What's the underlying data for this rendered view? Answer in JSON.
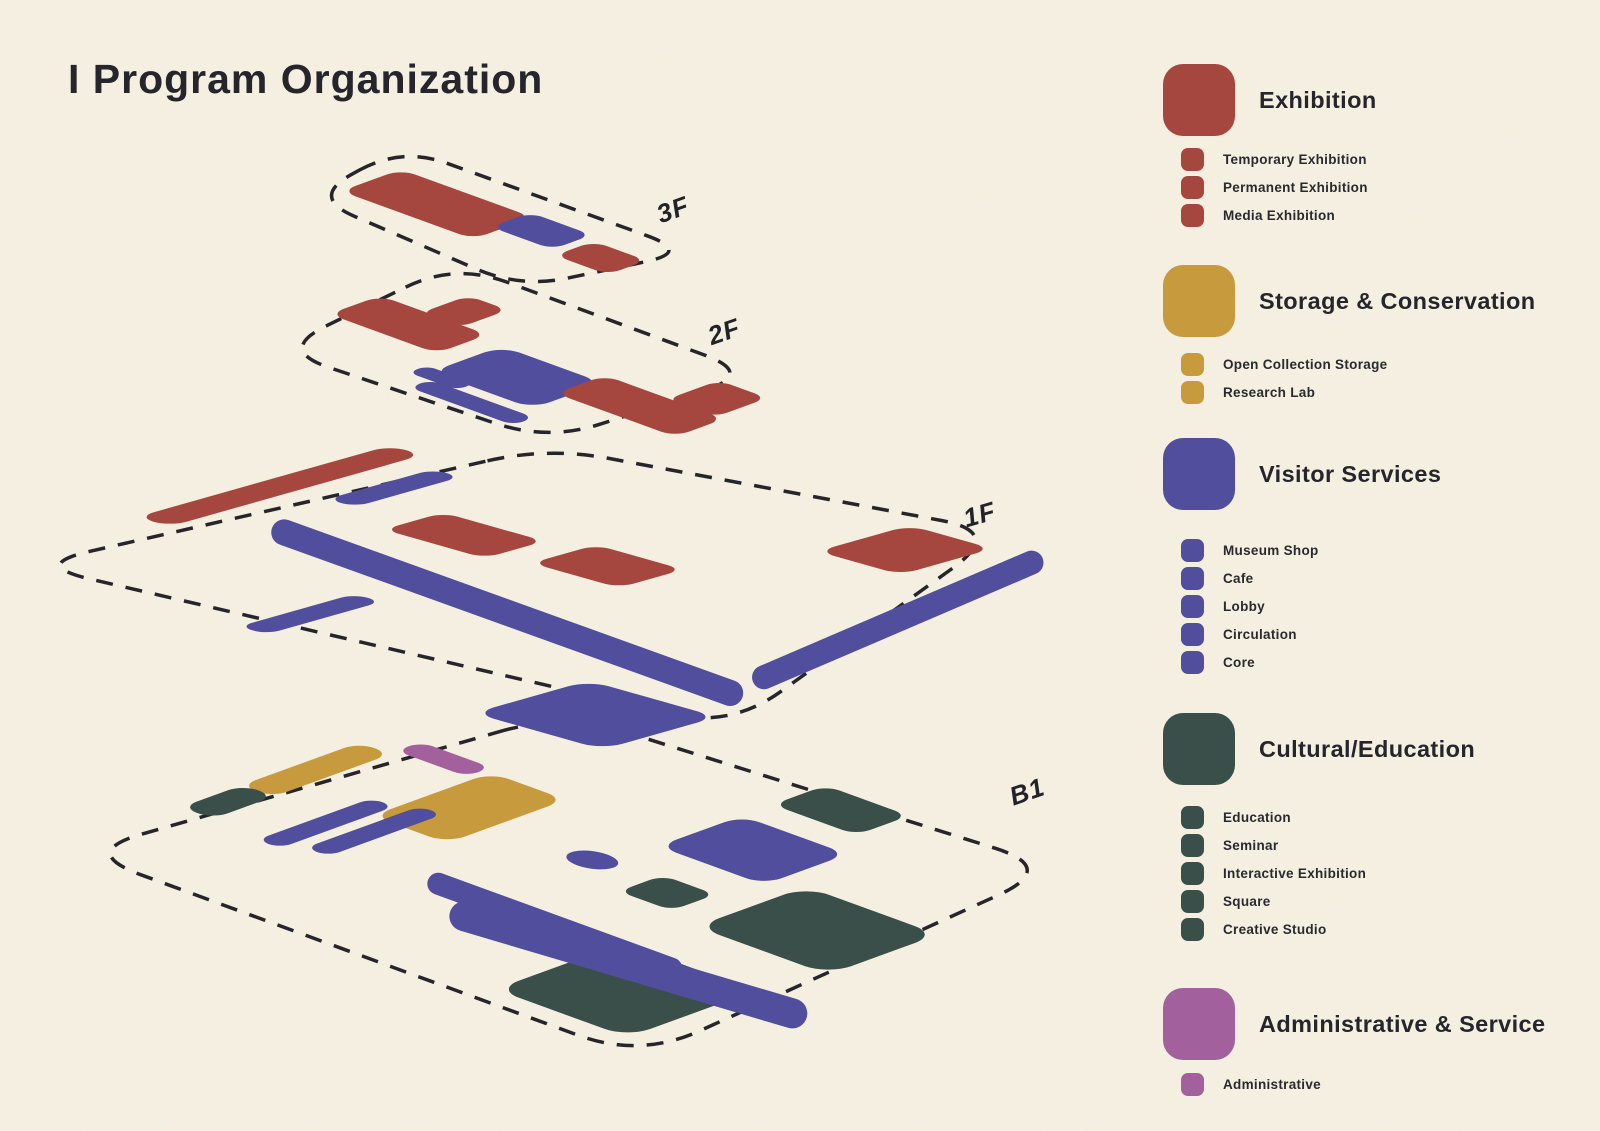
{
  "title": "I Program Organization",
  "palette": {
    "background": "#F6F1E2",
    "ink": "#26252B",
    "exhibition": "#A6473F",
    "storage": "#C79A3D",
    "visitor": "#504E9D",
    "cultural": "#3A4F49",
    "admin": "#A2609C"
  },
  "floors": [
    {
      "id": "3F",
      "label": "3F"
    },
    {
      "id": "2F",
      "label": "2F"
    },
    {
      "id": "1F",
      "label": "1F"
    },
    {
      "id": "B1",
      "label": "B1"
    }
  ],
  "legend": {
    "groups": [
      {
        "name": "Exhibition",
        "color_key": "exhibition",
        "items": [
          "Temporary Exhibition",
          "Permanent Exhibition",
          "Media Exhibition"
        ]
      },
      {
        "name": "Storage & Conservation",
        "color_key": "storage",
        "items": [
          "Open Collection Storage",
          "Research Lab"
        ]
      },
      {
        "name": "Visitor Services",
        "color_key": "visitor",
        "items": [
          "Museum Shop",
          "Cafe",
          "Lobby",
          "Circulation",
          "Core"
        ]
      },
      {
        "name": "Cultural/Education",
        "color_key": "cultural",
        "items": [
          "Education",
          "Seminar",
          "Interactive Exhibition",
          "Square",
          "Creative Studio"
        ]
      },
      {
        "name": "Administrative & Service",
        "color_key": "admin",
        "items": [
          "Administrative"
        ]
      }
    ]
  }
}
